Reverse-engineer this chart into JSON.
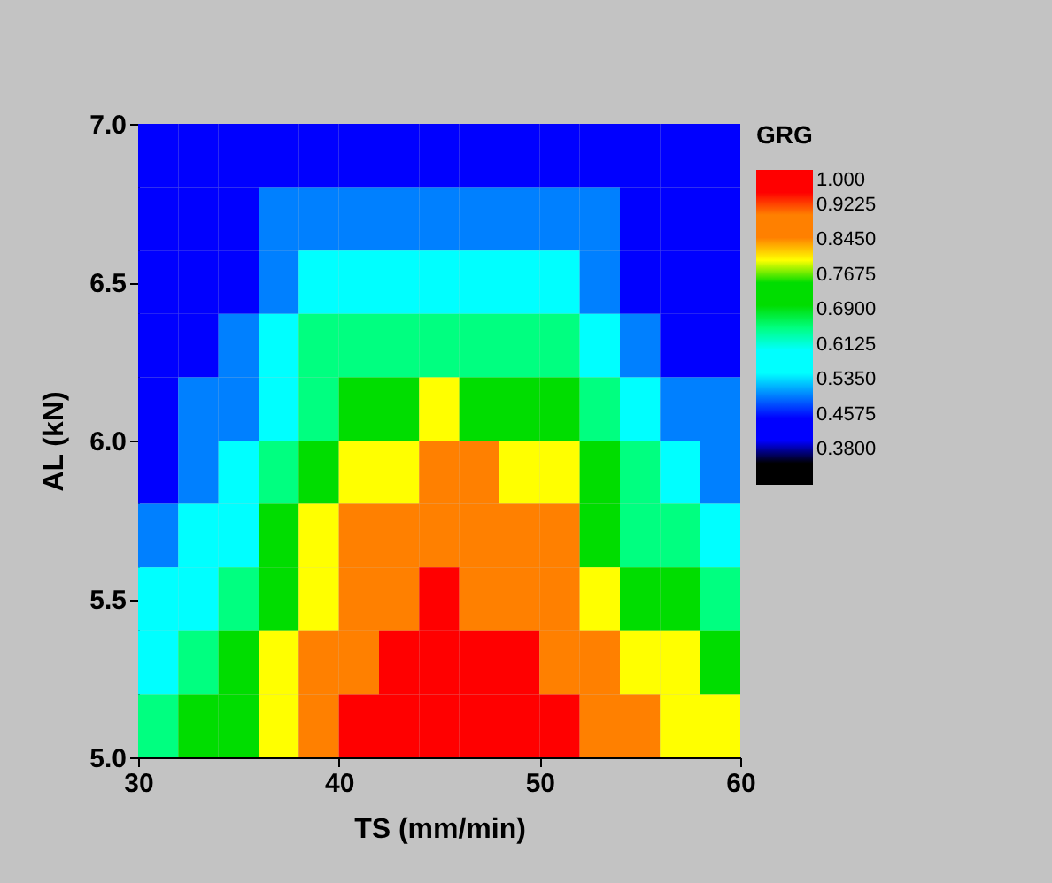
{
  "chart_data": {
    "type": "heatmap",
    "xlabel": "TS (mm/min)",
    "ylabel": "AL (kN)",
    "legend_title": "GRG",
    "x": [
      31,
      33,
      35,
      37,
      39,
      41,
      43,
      45,
      47,
      49,
      51,
      53,
      55,
      57,
      59
    ],
    "y": [
      6.9,
      6.7,
      6.5,
      6.3,
      6.1,
      5.9,
      5.7,
      5.5,
      5.3,
      5.1
    ],
    "xlim": [
      30,
      60
    ],
    "xticks": [
      30,
      40,
      50,
      60
    ],
    "ylim": [
      5.0,
      7.0
    ],
    "yticks": [
      {
        "value": 5,
        "label": "5.0"
      },
      {
        "value": 5.5,
        "label": "5.5"
      },
      {
        "value": 6,
        "label": "6.0"
      },
      {
        "value": 6.5,
        "label": "6.5"
      },
      {
        "value": 7,
        "label": "7.0"
      }
    ],
    "clim": [
      0.3025,
      1.0
    ],
    "cticks": [
      {
        "value": 1,
        "label": "1.000"
      },
      0.9225,
      {
        "value": 0.845,
        "label": "0.8450"
      },
      0.7675,
      {
        "value": 0.69,
        "label": "0.6900"
      },
      0.6125,
      {
        "value": 0.535,
        "label": "0.5350"
      },
      0.4575,
      {
        "value": 0.38,
        "label": "0.3800"
      }
    ],
    "colors": [
      "#ff0000",
      "#ff8000",
      "#ffff00",
      "#00dd00",
      "#00ff80",
      "#00ffff",
      "#0080ff",
      "#0000ff",
      "#000000"
    ],
    "cells": [
      [
        0.42,
        0.42,
        0.42,
        0.42,
        0.42,
        0.42,
        0.42,
        0.42,
        0.42,
        0.42,
        0.42,
        0.42,
        0.42,
        0.42,
        0.42
      ],
      [
        0.42,
        0.42,
        0.42,
        0.5,
        0.5,
        0.5,
        0.5,
        0.5,
        0.5,
        0.5,
        0.5,
        0.5,
        0.42,
        0.42,
        0.42
      ],
      [
        0.42,
        0.42,
        0.42,
        0.5,
        0.57,
        0.57,
        0.57,
        0.57,
        0.57,
        0.57,
        0.57,
        0.5,
        0.42,
        0.42,
        0.42
      ],
      [
        0.42,
        0.42,
        0.5,
        0.57,
        0.65,
        0.65,
        0.65,
        0.65,
        0.65,
        0.65,
        0.65,
        0.57,
        0.5,
        0.42,
        0.42
      ],
      [
        0.42,
        0.5,
        0.5,
        0.57,
        0.65,
        0.73,
        0.73,
        0.81,
        0.73,
        0.73,
        0.73,
        0.65,
        0.57,
        0.5,
        0.5
      ],
      [
        0.42,
        0.5,
        0.57,
        0.65,
        0.73,
        0.81,
        0.81,
        0.88,
        0.88,
        0.81,
        0.81,
        0.73,
        0.65,
        0.57,
        0.5
      ],
      [
        0.5,
        0.57,
        0.57,
        0.73,
        0.81,
        0.88,
        0.88,
        0.88,
        0.88,
        0.88,
        0.88,
        0.73,
        0.65,
        0.65,
        0.57
      ],
      [
        0.57,
        0.57,
        0.65,
        0.73,
        0.81,
        0.88,
        0.88,
        0.96,
        0.88,
        0.88,
        0.88,
        0.81,
        0.73,
        0.73,
        0.65
      ],
      [
        0.57,
        0.65,
        0.73,
        0.81,
        0.88,
        0.88,
        0.96,
        0.96,
        0.96,
        0.96,
        0.88,
        0.88,
        0.81,
        0.81,
        0.73
      ],
      [
        0.65,
        0.73,
        0.73,
        0.81,
        0.88,
        0.96,
        0.96,
        0.96,
        0.96,
        0.96,
        0.96,
        0.88,
        0.88,
        0.81,
        0.81
      ]
    ]
  }
}
